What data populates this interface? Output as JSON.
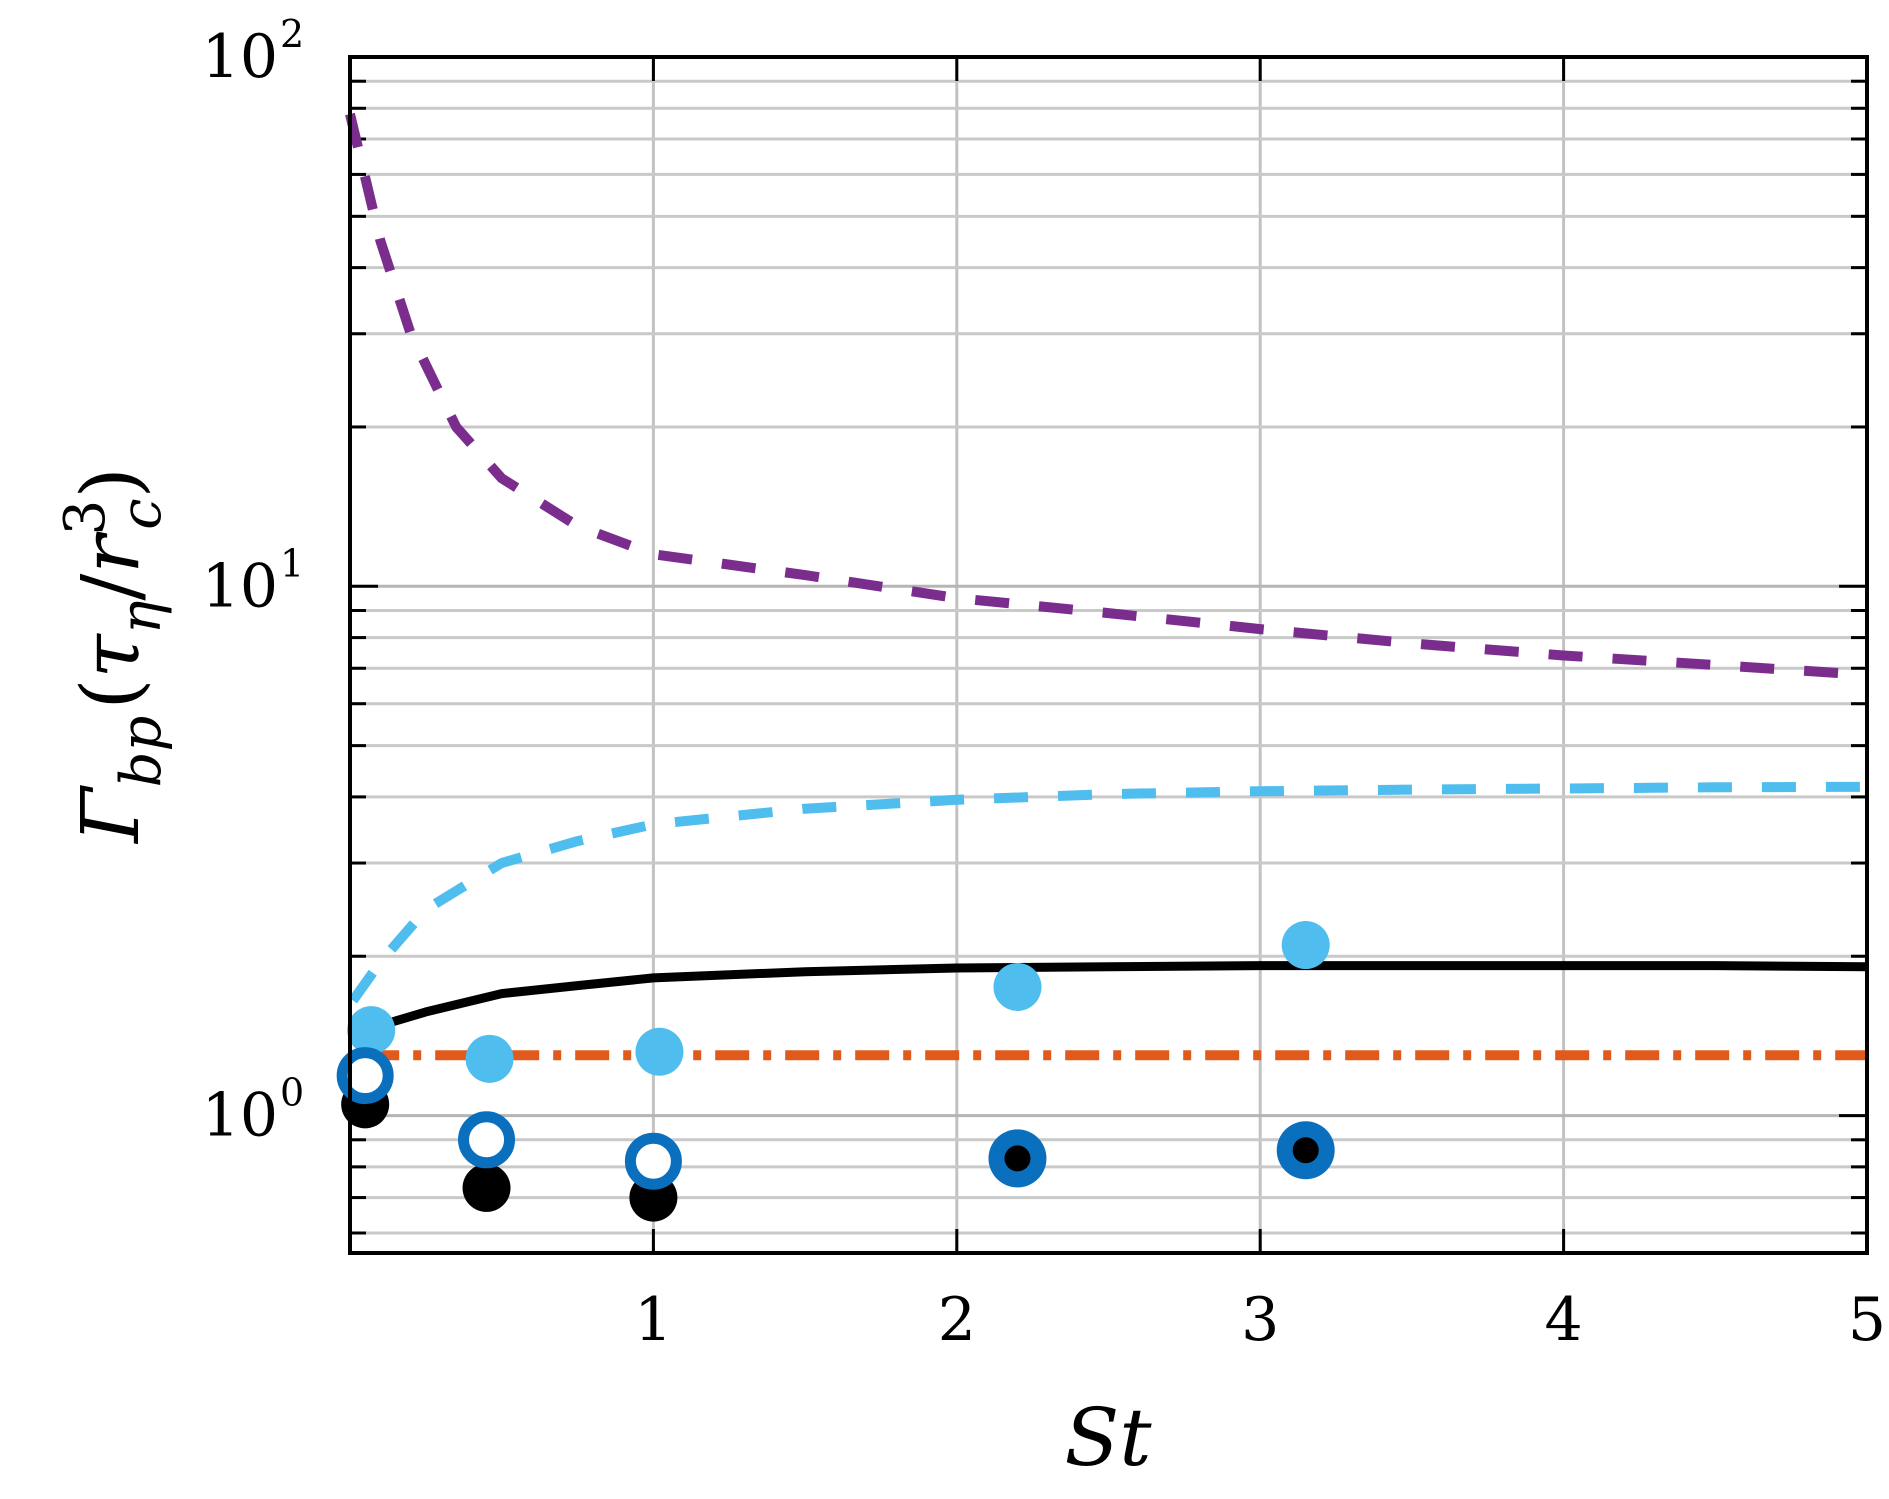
{
  "chart_data": {
    "type": "line",
    "title": "",
    "xlabel": "St",
    "ylabel": {
      "symbol": "Γ",
      "sub": "bp",
      "open": "(",
      "tau": "τ",
      "tau_sub": "η",
      "slash": "/",
      "r": "r",
      "r_sub": "c",
      "r_sup": "3",
      "close": ")"
    },
    "xlim": [
      0,
      5
    ],
    "ylim": [
      0.55,
      100
    ],
    "yscale": "log",
    "grid": true,
    "legend": "none",
    "x_ticks": [
      {
        "value": 1,
        "label": "1"
      },
      {
        "value": 2,
        "label": "2"
      },
      {
        "value": 3,
        "label": "3"
      },
      {
        "value": 4,
        "label": "4"
      },
      {
        "value": 5,
        "label": "5"
      }
    ],
    "y_ticks": [
      {
        "value": 1,
        "base": "10",
        "exp": "0"
      },
      {
        "value": 10,
        "base": "10",
        "exp": "1"
      },
      {
        "value": 100,
        "base": "10",
        "exp": "2"
      }
    ],
    "lines": [
      {
        "color": "#7b2d8e",
        "style": "dashed",
        "x": [
          0,
          0.1,
          0.2,
          0.35,
          0.5,
          0.75,
          1.0,
          1.5,
          2.0,
          2.5,
          3.0,
          3.5,
          4.0,
          4.5,
          5.0
        ],
        "y": [
          78,
          45,
          30,
          20,
          16,
          13,
          11.5,
          10.5,
          9.5,
          8.9,
          8.3,
          7.8,
          7.4,
          7.1,
          6.8
        ]
      },
      {
        "color": "#4fbdee",
        "style": "dashed",
        "x": [
          0.01,
          0.1,
          0.25,
          0.5,
          0.75,
          1.0,
          1.5,
          2.0,
          2.5,
          3.0,
          3.5,
          4.0,
          4.5,
          5.0
        ],
        "y": [
          1.65,
          1.95,
          2.45,
          3.0,
          3.3,
          3.55,
          3.8,
          3.95,
          4.05,
          4.1,
          4.13,
          4.15,
          4.17,
          4.18
        ]
      },
      {
        "color": "#000000",
        "style": "solid",
        "x": [
          0.04,
          0.1,
          0.25,
          0.5,
          0.75,
          1.0,
          1.5,
          2.0,
          2.5,
          3.0,
          3.5,
          4.0,
          4.5,
          5.0
        ],
        "y": [
          1.42,
          1.48,
          1.57,
          1.7,
          1.76,
          1.82,
          1.87,
          1.9,
          1.91,
          1.92,
          1.92,
          1.92,
          1.92,
          1.91
        ]
      },
      {
        "color": "#e05a1c",
        "style": "dashdot",
        "x": [
          0.05,
          5.0
        ],
        "y": [
          1.3,
          1.3
        ]
      }
    ],
    "points": [
      {
        "marker": "filled",
        "color": "#4fbdee",
        "x": [
          0.07,
          0.46,
          1.02,
          2.2,
          3.15
        ],
        "y": [
          1.45,
          1.28,
          1.32,
          1.75,
          2.1
        ]
      },
      {
        "marker": "filled",
        "color": "#000000",
        "x": [
          0.05,
          0.45,
          1.0,
          2.2,
          3.15
        ],
        "y": [
          1.05,
          0.73,
          0.7,
          0.82,
          0.87
        ]
      },
      {
        "marker": "open",
        "color": "#0a6fbd",
        "x": [
          0.05,
          0.45,
          1.0
        ],
        "y": [
          1.19,
          0.9,
          0.82
        ]
      },
      {
        "marker": "ring",
        "color": "#0a6fbd",
        "inner": "#000000",
        "x": [
          2.2,
          3.15
        ],
        "y": [
          0.83,
          0.86
        ]
      }
    ]
  }
}
